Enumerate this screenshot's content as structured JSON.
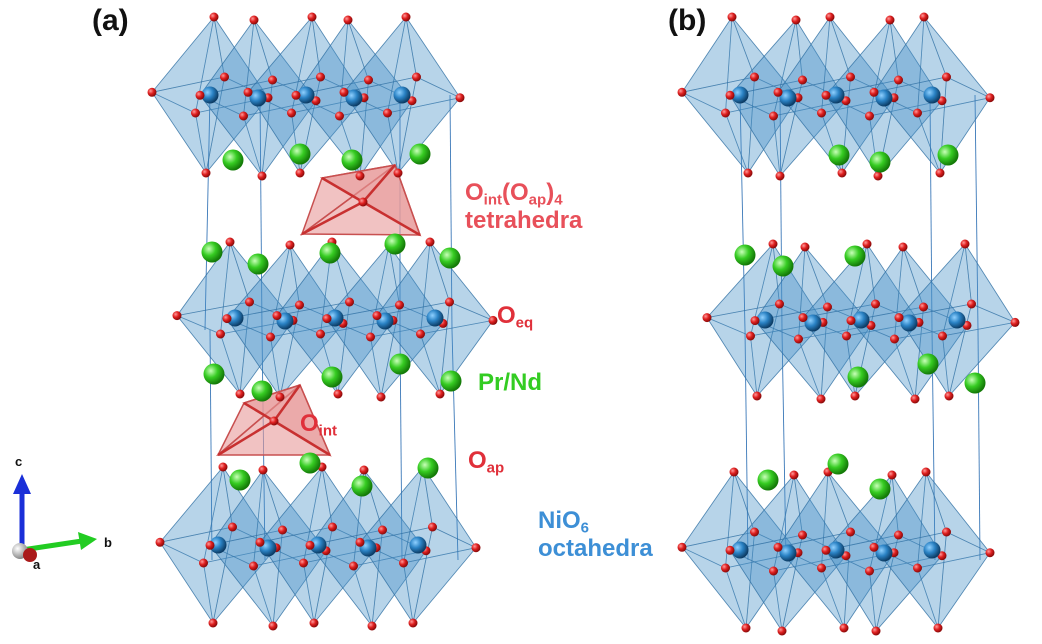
{
  "panels": {
    "a": "(a)",
    "b": "(b)"
  },
  "labels": {
    "tetra_O": "O",
    "tetra_int": "int",
    "tetra_paren_open": "(O",
    "tetra_ap": "ap",
    "tetra_paren_close": ")",
    "tetra_4": "4",
    "tetra_word": "tetrahedra",
    "oeq_O": "O",
    "oeq_sub": "eq",
    "prnd": "Pr/Nd",
    "oap_O": "O",
    "oap_sub": "ap",
    "oint_O": "O",
    "oint_sub": "int",
    "nio_main": "NiO",
    "nio_sub": "6",
    "nio_word": "octahedra"
  },
  "axes": {
    "c": "c",
    "b": "b",
    "a": "a"
  },
  "colors": {
    "octahedra": "#4a90c8",
    "ni_atom": "#2a7fc0",
    "oxygen": "#d42020",
    "pr_nd": "#33cc22",
    "tetrahedra": "#e89a9a",
    "axis_c": "#1a2fd8",
    "axis_b": "#22cc22",
    "axis_a": "#aa1a1a"
  }
}
